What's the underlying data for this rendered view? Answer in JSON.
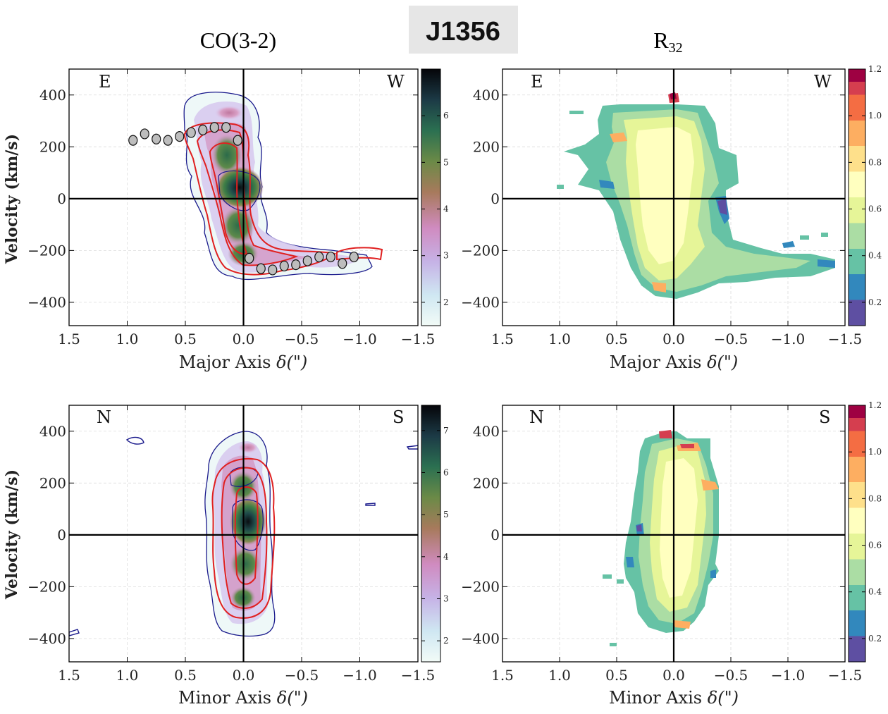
{
  "title": "J1356",
  "columns": [
    {
      "title_main": "CO(3-2)",
      "title_sub": ""
    },
    {
      "title_main": "R",
      "title_sub": "32"
    }
  ],
  "chart_data": [
    {
      "id": "co_major",
      "type": "heatmap",
      "title": "CO(3-2)",
      "xlabel_main": "Major Axis",
      "xlabel_delta": "δ(\")",
      "ylabel": "Velocity (km/s)",
      "xlim": [
        1.5,
        -1.5
      ],
      "ylim": [
        -490,
        500
      ],
      "xticks": [
        "1.5",
        "1.0",
        "0.5",
        "0.0",
        "−0.5",
        "−1.0",
        "−1.5"
      ],
      "yticks": [
        "400",
        "200",
        "0",
        "−200",
        "−400"
      ],
      "corner_left": "E",
      "corner_right": "W",
      "colorbar": {
        "min": 1.5,
        "max": 7.0,
        "ticks": [
          "2",
          "3",
          "4",
          "5",
          "6"
        ],
        "colormap": "cubehelix"
      },
      "rotation_points": {
        "x": [
          0.95,
          0.85,
          0.75,
          0.65,
          0.55,
          0.45,
          0.35,
          0.25,
          0.15,
          0.05,
          -0.05,
          -0.15,
          -0.25,
          -0.35,
          -0.45,
          -0.55,
          -0.65,
          -0.75,
          -0.85,
          -0.95
        ],
        "y": [
          225,
          250,
          230,
          225,
          240,
          255,
          265,
          275,
          275,
          225,
          -230,
          -270,
          -275,
          -260,
          -255,
          -240,
          -225,
          -225,
          -250,
          -225
        ]
      },
      "shape": "major"
    },
    {
      "id": "r32_major",
      "type": "heatmap",
      "title": "R32",
      "xlabel_main": "Major Axis",
      "xlabel_delta": "δ(\")",
      "ylabel": "",
      "xlim": [
        1.5,
        -1.5
      ],
      "ylim": [
        -490,
        500
      ],
      "xticks": [
        "1.5",
        "1.0",
        "0.5",
        "0.0",
        "−0.5",
        "−1.0",
        "−1.5"
      ],
      "yticks": [
        "400",
        "200",
        "0",
        "−200",
        "−400"
      ],
      "corner_left": "E",
      "corner_right": "W",
      "colorbar": {
        "min": 0.1,
        "max": 1.2,
        "ticks": [
          "0.2",
          "0.4",
          "0.6",
          "0.8",
          "1.0",
          "1.2"
        ],
        "colormap": "spectral"
      },
      "shape": "major"
    },
    {
      "id": "co_minor",
      "type": "heatmap",
      "title": "CO(3-2)",
      "xlabel_main": "Minor Axis",
      "xlabel_delta": "δ(\")",
      "ylabel": "Velocity (km/s)",
      "xlim": [
        1.5,
        -1.5
      ],
      "ylim": [
        -490,
        500
      ],
      "xticks": [
        "1.5",
        "1.0",
        "0.5",
        "0.0",
        "−0.5",
        "−1.0",
        "−1.5"
      ],
      "yticks": [
        "400",
        "200",
        "0",
        "−200",
        "−400"
      ],
      "corner_left": "N",
      "corner_right": "S",
      "colorbar": {
        "min": 1.5,
        "max": 7.6,
        "ticks": [
          "2",
          "3",
          "4",
          "5",
          "6",
          "7"
        ],
        "colormap": "cubehelix"
      },
      "shape": "minor"
    },
    {
      "id": "r32_minor",
      "type": "heatmap",
      "title": "R32",
      "xlabel_main": "Minor Axis",
      "xlabel_delta": "δ(\")",
      "ylabel": "",
      "xlim": [
        1.5,
        -1.5
      ],
      "ylim": [
        -490,
        500
      ],
      "xticks": [
        "1.5",
        "1.0",
        "0.5",
        "0.0",
        "−0.5",
        "−1.0",
        "−1.5"
      ],
      "yticks": [
        "400",
        "200",
        "0",
        "−200",
        "−400"
      ],
      "corner_left": "N",
      "corner_right": "S",
      "colorbar": {
        "min": 0.1,
        "max": 1.2,
        "ticks": [
          "0.2",
          "0.4",
          "0.6",
          "0.8",
          "1.0",
          "1.2"
        ],
        "colormap": "spectral"
      },
      "shape": "minor"
    }
  ]
}
